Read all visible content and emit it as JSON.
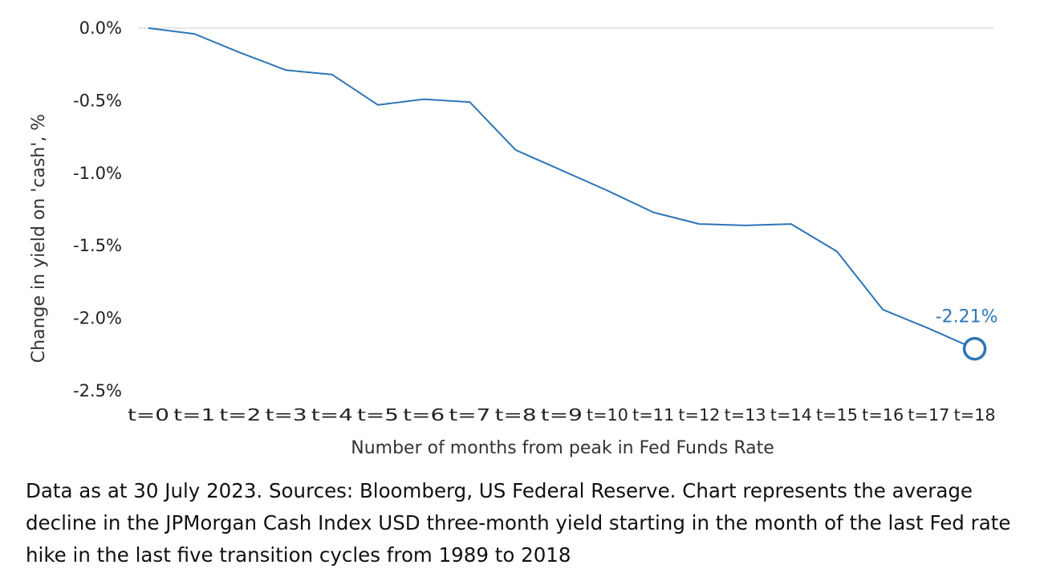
{
  "chart_data": {
    "type": "line",
    "title": "",
    "xlabel": "Number of months from peak in Fed Funds Rate",
    "ylabel": "Change in yield on 'cash', %",
    "categories": [
      "t=0",
      "t=1",
      "t=2",
      "t=3",
      "t=4",
      "t=5",
      "t=6",
      "t=7",
      "t=8",
      "t=9",
      "t=10",
      "t=11",
      "t=12",
      "t=13",
      "t=14",
      "t=15",
      "t=16",
      "t=17",
      "t=18"
    ],
    "series": [
      {
        "name": "JPMorgan Cash Index USD 3M yield change",
        "values": [
          0.0,
          -0.04,
          -0.17,
          -0.29,
          -0.32,
          -0.53,
          -0.49,
          -0.51,
          -0.84,
          -0.98,
          -1.12,
          -1.27,
          -1.35,
          -1.36,
          -1.35,
          -1.54,
          -1.94,
          -2.07,
          -2.21
        ]
      }
    ],
    "yticks": [
      "0.0%",
      "-0.5%",
      "-1.0%",
      "-1.5%",
      "-2.0%",
      "-2.5%"
    ],
    "ytick_values": [
      0.0,
      -0.5,
      -1.0,
      -1.5,
      -2.0,
      -2.5
    ],
    "ylim": [
      -2.5,
      0.0
    ],
    "grid": false,
    "annotation": {
      "label": "-2.21%",
      "category": "t=18",
      "value": -2.21
    },
    "line_color": "#2e75b6"
  },
  "caption": "Data as at 30 July 2023. Sources: Bloomberg, US Federal Reserve. Chart represents the average decline in the JPMorgan Cash Index USD three-month yield starting in the month of the last Fed rate hike in the last five transition cycles from 1989 to 2018"
}
